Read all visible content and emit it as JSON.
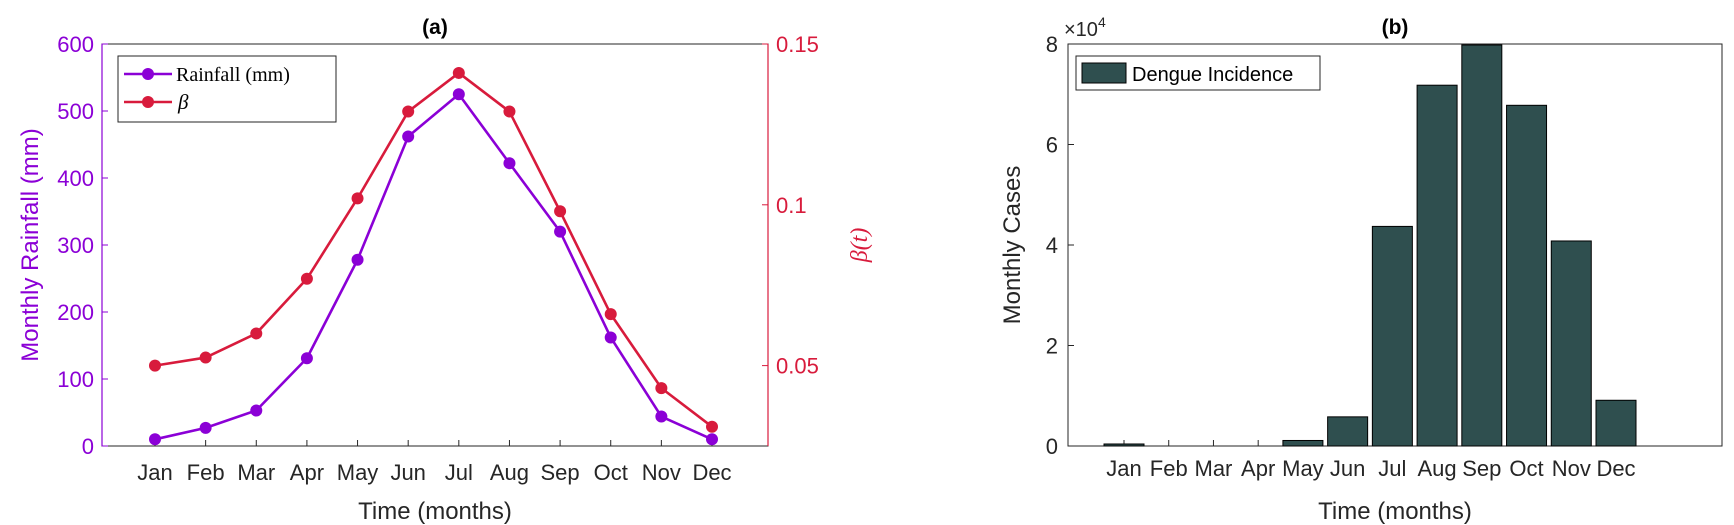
{
  "chart_data": [
    {
      "type": "line",
      "panel_label": "(a)",
      "categories": [
        "Jan",
        "Feb",
        "Mar",
        "Apr",
        "May",
        "Jun",
        "Jul",
        "Aug",
        "Sep",
        "Oct",
        "Nov",
        "Dec"
      ],
      "xlabel": "Time (months)",
      "ylabel_left": "Monthly Rainfall (mm)",
      "ylabel_right": "β(t)",
      "ylim_left": [
        0,
        600
      ],
      "ylim_right": [
        0.025,
        0.15
      ],
      "yticks_left": [
        "0",
        "100",
        "200",
        "300",
        "400",
        "500",
        "600"
      ],
      "yticks_right": [
        "0.05",
        "0.1",
        "0.15"
      ],
      "legend_position": "top-left",
      "series": [
        {
          "name": "Rainfall (mm)",
          "axis": "left",
          "color": "#8B00D6",
          "values": [
            10,
            27,
            53,
            131,
            278,
            462,
            525,
            422,
            320,
            162,
            44,
            10
          ]
        },
        {
          "name": "β",
          "axis": "right",
          "color": "#D81B3C",
          "values": [
            0.05,
            0.0525,
            0.06,
            0.077,
            0.102,
            0.129,
            0.141,
            0.129,
            0.098,
            0.066,
            0.043,
            0.031
          ]
        }
      ]
    },
    {
      "type": "bar",
      "panel_label": "(b)",
      "categories": [
        "Jan",
        "Feb",
        "Mar",
        "Apr",
        "May",
        "Jun",
        "Jul",
        "Aug",
        "Sep",
        "Oct",
        "Nov",
        "Dec"
      ],
      "xlabel": "Time (months)",
      "ylabel": "Monthly Cases",
      "ylim": [
        0,
        80000
      ],
      "yticks": [
        "0",
        "2",
        "4",
        "6",
        "8"
      ],
      "exponent_label": "×10",
      "exponent_power": "4",
      "legend_position": "top-left",
      "series": [
        {
          "name": "Dengue Incidence",
          "color": "#2F4F4F",
          "values": [
            400,
            0,
            0,
            0,
            1100,
            5800,
            43700,
            71800,
            79800,
            67800,
            40800,
            9100
          ]
        }
      ]
    }
  ]
}
